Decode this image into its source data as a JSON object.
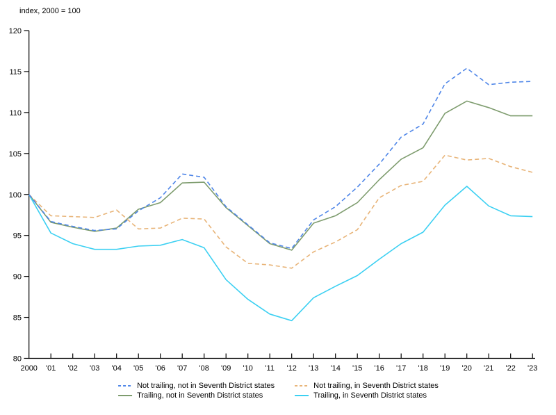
{
  "note": "index, 2000 = 100",
  "chart_data": {
    "type": "line",
    "title": "",
    "ylabel_note": "index, 2000 = 100",
    "ylim": [
      80,
      120
    ],
    "ytick_step": 5,
    "grid": false,
    "legend_position": "bottom-center",
    "x_labels": [
      "2000",
      "'01",
      "'02",
      "'03",
      "'04",
      "'05",
      "'06",
      "'07",
      "'08",
      "'09",
      "'10",
      "'11",
      "'12",
      "'13",
      "'14",
      "'15",
      "'16",
      "'17",
      "'18",
      "'19",
      "'20",
      "'21",
      "'22",
      "'23"
    ],
    "series": [
      {
        "name": "Not trailing, not in Seventh District states",
        "color": "#4f86e8",
        "dash": true,
        "values": [
          100,
          96.7,
          96.1,
          95.6,
          95.8,
          98.0,
          99.6,
          102.5,
          102.1,
          98.5,
          96.3,
          94.1,
          93.4,
          96.9,
          98.5,
          100.9,
          103.7,
          107.0,
          108.6,
          113.5,
          115.4,
          113.4,
          113.7,
          113.8
        ]
      },
      {
        "name": "Not trailing, in Seventh District states",
        "color": "#e8b478",
        "dash": true,
        "values": [
          100,
          97.4,
          97.3,
          97.2,
          98.1,
          95.8,
          95.9,
          97.1,
          97.0,
          93.6,
          91.6,
          91.4,
          91.0,
          93.0,
          94.2,
          95.7,
          99.6,
          101.1,
          101.6,
          104.8,
          104.2,
          104.4,
          103.4,
          102.7
        ]
      },
      {
        "name": "Trailing, not in Seventh District states",
        "color": "#7e9c6e",
        "dash": false,
        "values": [
          100,
          96.6,
          96.0,
          95.5,
          95.9,
          98.2,
          99.0,
          101.4,
          101.5,
          98.4,
          96.2,
          94.0,
          93.2,
          96.5,
          97.4,
          99.0,
          101.8,
          104.3,
          105.7,
          109.9,
          111.4,
          110.6,
          109.6,
          109.6
        ]
      },
      {
        "name": "Trailing, in Seventh District states",
        "color": "#3cd0f2",
        "dash": false,
        "values": [
          100,
          95.3,
          94.0,
          93.3,
          93.3,
          93.7,
          93.8,
          94.5,
          93.5,
          89.6,
          87.2,
          85.4,
          84.6,
          87.4,
          88.8,
          90.1,
          92.1,
          94.0,
          95.4,
          98.7,
          101.0,
          98.6,
          97.4,
          97.3
        ]
      }
    ],
    "axis_color": "#000000"
  }
}
